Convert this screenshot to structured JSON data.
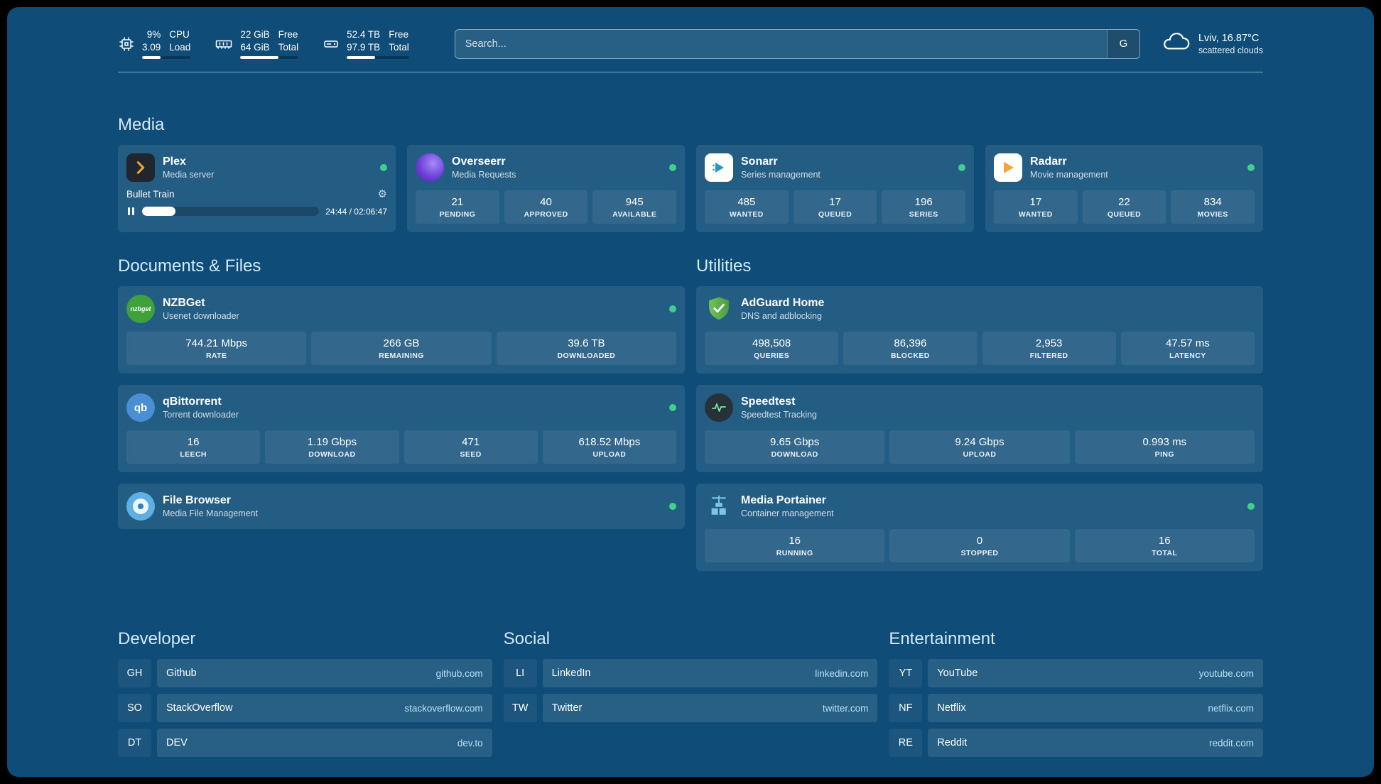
{
  "colors": {
    "page-bg": "#0f4d78",
    "status-green": "#3ed08c",
    "domain-accent": "#b9e0f7",
    "section-title": "#d2e9f7"
  },
  "topbar": {
    "cpu": {
      "value1": "9%",
      "value2": "3.09",
      "label1": "CPU",
      "label2": "Load",
      "progress": 38
    },
    "ram": {
      "value1": "22 GiB",
      "value2": "64 GiB",
      "label1": "Free",
      "label2": "Total",
      "progress": 66
    },
    "disk": {
      "value1": "52.4 TB",
      "value2": "97.9 TB",
      "label1": "Free",
      "label2": "Total",
      "progress": 46
    },
    "search": {
      "placeholder": "Search...",
      "engine": "G"
    },
    "weather": {
      "location": "Lviv, 16.87°C",
      "condition": "scattered clouds"
    }
  },
  "sections": {
    "media": "Media",
    "documents": "Documents & Files",
    "utilities": "Utilities"
  },
  "services": {
    "plex": {
      "name": "Plex",
      "subtitle": "Media server",
      "now_playing": "Bullet Train",
      "time": "24:44 / 02:06:47",
      "progress": 19
    },
    "overseerr": {
      "name": "Overseerr",
      "subtitle": "Media Requests",
      "stats": [
        {
          "value": "21",
          "label": "PENDING"
        },
        {
          "value": "40",
          "label": "APPROVED"
        },
        {
          "value": "945",
          "label": "AVAILABLE"
        }
      ]
    },
    "sonarr": {
      "name": "Sonarr",
      "subtitle": "Series management",
      "stats": [
        {
          "value": "485",
          "label": "WANTED"
        },
        {
          "value": "17",
          "label": "QUEUED"
        },
        {
          "value": "196",
          "label": "SERIES"
        }
      ]
    },
    "radarr": {
      "name": "Radarr",
      "subtitle": "Movie management",
      "stats": [
        {
          "value": "17",
          "label": "WANTED"
        },
        {
          "value": "22",
          "label": "QUEUED"
        },
        {
          "value": "834",
          "label": "MOVIES"
        }
      ]
    },
    "nzbget": {
      "name": "NZBGet",
      "subtitle": "Usenet downloader",
      "stats": [
        {
          "value": "744.21 Mbps",
          "label": "RATE"
        },
        {
          "value": "266 GB",
          "label": "REMAINING"
        },
        {
          "value": "39.6 TB",
          "label": "DOWNLOADED"
        }
      ]
    },
    "qbittorrent": {
      "name": "qBittorrent",
      "subtitle": "Torrent downloader",
      "stats": [
        {
          "value": "16",
          "label": "LEECH"
        },
        {
          "value": "1.19 Gbps",
          "label": "DOWNLOAD"
        },
        {
          "value": "471",
          "label": "SEED"
        },
        {
          "value": "618.52 Mbps",
          "label": "UPLOAD"
        }
      ]
    },
    "filebrowser": {
      "name": "File Browser",
      "subtitle": "Media File Management"
    },
    "adguard": {
      "name": "AdGuard Home",
      "subtitle": "DNS and adblocking",
      "stats": [
        {
          "value": "498,508",
          "label": "QUERIES"
        },
        {
          "value": "86,396",
          "label": "BLOCKED"
        },
        {
          "value": "2,953",
          "label": "FILTERED"
        },
        {
          "value": "47.57 ms",
          "label": "LATENCY"
        }
      ]
    },
    "speedtest": {
      "name": "Speedtest",
      "subtitle": "Speedtest Tracking",
      "stats": [
        {
          "value": "9.65 Gbps",
          "label": "DOWNLOAD"
        },
        {
          "value": "9.24 Gbps",
          "label": "UPLOAD"
        },
        {
          "value": "0.993 ms",
          "label": "PING"
        }
      ]
    },
    "portainer": {
      "name": "Media Portainer",
      "subtitle": "Container management",
      "stats": [
        {
          "value": "16",
          "label": "RUNNING"
        },
        {
          "value": "0",
          "label": "STOPPED"
        },
        {
          "value": "16",
          "label": "TOTAL"
        }
      ]
    }
  },
  "bookmarks": {
    "developer": {
      "title": "Developer",
      "items": [
        {
          "abbr": "GH",
          "name": "Github",
          "domain": "github.com"
        },
        {
          "abbr": "SO",
          "name": "StackOverflow",
          "domain": "stackoverflow.com"
        },
        {
          "abbr": "DT",
          "name": "DEV",
          "domain": "dev.to"
        }
      ]
    },
    "social": {
      "title": "Social",
      "items": [
        {
          "abbr": "LI",
          "name": "LinkedIn",
          "domain": "linkedin.com"
        },
        {
          "abbr": "TW",
          "name": "Twitter",
          "domain": "twitter.com"
        }
      ]
    },
    "entertainment": {
      "title": "Entertainment",
      "items": [
        {
          "abbr": "YT",
          "name": "YouTube",
          "domain": "youtube.com"
        },
        {
          "abbr": "NF",
          "name": "Netflix",
          "domain": "netflix.com"
        },
        {
          "abbr": "RE",
          "name": "Reddit",
          "domain": "reddit.com"
        }
      ]
    }
  },
  "icons": {
    "nzbget_text": "nzbget",
    "qbittorrent_text": "qb"
  }
}
